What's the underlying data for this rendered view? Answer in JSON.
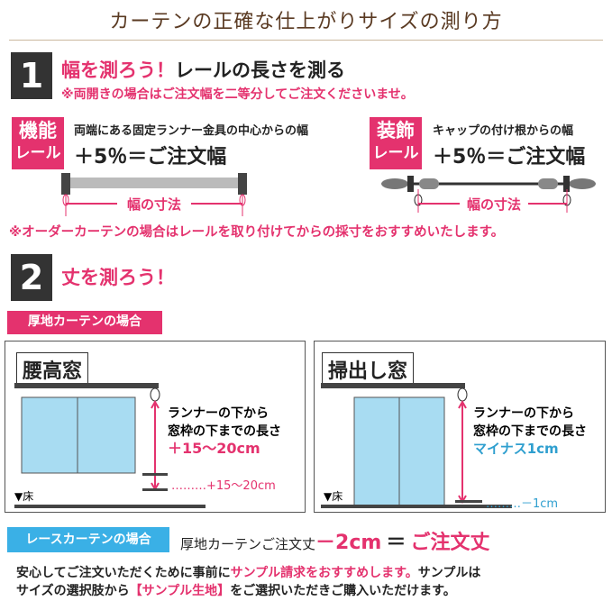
{
  "title": "カーテンの正確な仕上がりサイズの測り方",
  "colors": {
    "accent": "#e4326e",
    "lace": "#3ab0e6",
    "window": "#a8dcf2",
    "title": "#5a3a22"
  },
  "step1": {
    "number": "1",
    "title_pink": "幅を測ろう！",
    "title_black": "レールの長さを測る",
    "note": "※両開きの場合はご注文幅を二等分してご注文くださいませ。",
    "functional": {
      "badge_line1": "機能",
      "badge_line2": "レール",
      "desc": "両端にある固定ランナー金具の中心からの幅",
      "formula": "＋5％＝ご注文幅",
      "dim_label": "幅の寸法"
    },
    "decorative": {
      "badge_line1": "装飾",
      "badge_line2": "レール",
      "desc": "キャップの付け根からの幅",
      "formula": "＋5％＝ご注文幅",
      "dim_label": "幅の寸法"
    },
    "order_note": "※オーダーカーテンの場合はレールを取り付けてからの採寸をおすすめいたします。"
  },
  "step2": {
    "number": "2",
    "title": "丈を測ろう！",
    "thick_badge": "厚地カーテンの場合",
    "waist": {
      "label": "腰高窓",
      "line1": "ランナーの下から",
      "line2": "窓枠の下までの長さ",
      "value": "＋15～20cm",
      "dim": "………+15～20cm",
      "floor": "▼床"
    },
    "floor_window": {
      "label": "掃出し窓",
      "line1": "ランナーの下から",
      "line2": "窓枠の下までの長さ",
      "value": "マイナス1cm",
      "dim": "………－1cm",
      "floor": "▼床"
    },
    "lace": {
      "badge": "レースカーテンの場合",
      "text": "厚地カーテンご注文丈",
      "minus": "－2cm",
      "equals": "＝",
      "result": "ご注文丈"
    }
  },
  "footer": {
    "p1a": "安心してご注文いただくために事前に",
    "p1b": "サンプル請求をおすすめします。",
    "p1c": "サンプルは",
    "p2a": "サイズの選択肢から",
    "p2b": "【サンプル生地】",
    "p2c": "をご選択いただきご購入いただけます。"
  }
}
